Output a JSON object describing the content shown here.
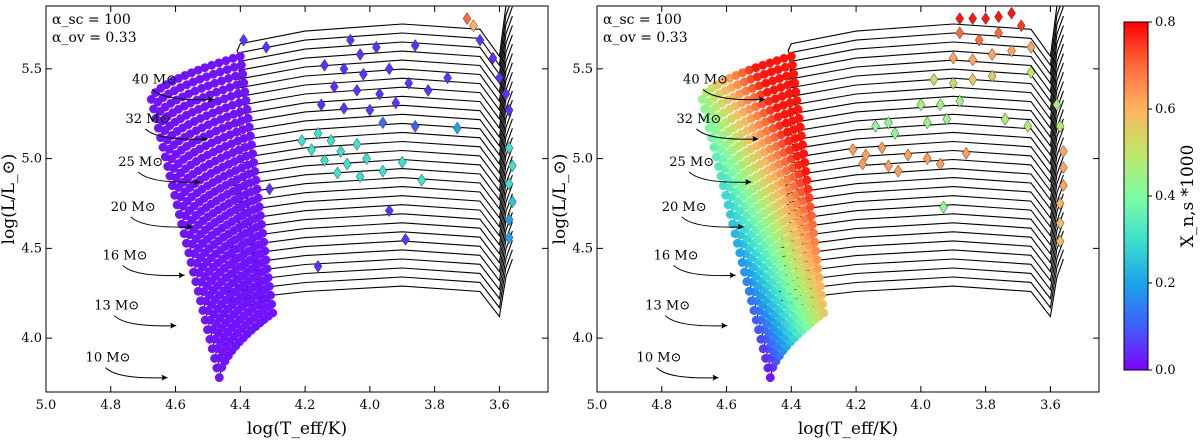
{
  "chart_data": [
    {
      "type": "scatter",
      "title": "",
      "xlabel": "log(T_eff/K)",
      "ylabel": "log(L/L_⊙)",
      "xlim": [
        5.0,
        3.45
      ],
      "ylim": [
        3.7,
        5.85
      ],
      "x_ticks": [
        "5.0",
        "4.8",
        "4.6",
        "4.4",
        "4.2",
        "4.0",
        "3.8",
        "3.6"
      ],
      "y_ticks": [
        "4.0",
        "4.5",
        "5.0",
        "5.5"
      ],
      "annotations": [
        "α_sc = 100",
        "α_ov = 0.33"
      ],
      "mass_labels": [
        {
          "text": "40 M⊙",
          "track_logL": 5.33
        },
        {
          "text": "32 M⊙",
          "track_logL": 5.11
        },
        {
          "text": "25 M⊙",
          "track_logL": 4.87
        },
        {
          "text": "20 M⊙",
          "track_logL": 4.62
        },
        {
          "text": "16 M⊙",
          "track_logL": 4.35
        },
        {
          "text": "13 M⊙",
          "track_logL": 4.07
        },
        {
          "text": "10 M⊙",
          "track_logL": 3.78
        }
      ],
      "color_quantity": "X_n,s * 1000",
      "ms_color_value": 0.02,
      "points": [
        {
          "x": 4.39,
          "y": 5.66,
          "c": 0.05
        },
        {
          "x": 4.32,
          "y": 5.62,
          "c": 0.05
        },
        {
          "x": 4.06,
          "y": 5.66,
          "c": 0.05
        },
        {
          "x": 3.98,
          "y": 5.62,
          "c": 0.05
        },
        {
          "x": 3.86,
          "y": 5.63,
          "c": 0.05
        },
        {
          "x": 4.14,
          "y": 5.52,
          "c": 0.05
        },
        {
          "x": 4.08,
          "y": 5.5,
          "c": 0.05
        },
        {
          "x": 4.02,
          "y": 5.47,
          "c": 0.05
        },
        {
          "x": 3.94,
          "y": 5.5,
          "c": 0.05
        },
        {
          "x": 3.88,
          "y": 5.42,
          "c": 0.05
        },
        {
          "x": 4.11,
          "y": 5.4,
          "c": 0.05
        },
        {
          "x": 4.04,
          "y": 5.38,
          "c": 0.05
        },
        {
          "x": 3.97,
          "y": 5.36,
          "c": 0.05
        },
        {
          "x": 4.15,
          "y": 5.3,
          "c": 0.05
        },
        {
          "x": 4.08,
          "y": 5.28,
          "c": 0.05
        },
        {
          "x": 4.0,
          "y": 5.27,
          "c": 0.06
        },
        {
          "x": 3.92,
          "y": 5.31,
          "c": 0.05
        },
        {
          "x": 3.82,
          "y": 5.38,
          "c": 0.05
        },
        {
          "x": 3.76,
          "y": 5.45,
          "c": 0.05
        },
        {
          "x": 4.03,
          "y": 5.58,
          "c": 0.05
        },
        {
          "x": 3.7,
          "y": 5.78,
          "c": 0.7
        },
        {
          "x": 3.68,
          "y": 5.74,
          "c": 0.6
        },
        {
          "x": 3.66,
          "y": 5.66,
          "c": 0.05
        },
        {
          "x": 3.62,
          "y": 5.56,
          "c": 0.05
        },
        {
          "x": 3.6,
          "y": 5.45,
          "c": 0.05
        },
        {
          "x": 3.58,
          "y": 5.36,
          "c": 0.05
        },
        {
          "x": 3.57,
          "y": 5.27,
          "c": 0.05
        },
        {
          "x": 3.73,
          "y": 5.17,
          "c": 0.2
        },
        {
          "x": 3.86,
          "y": 5.18,
          "c": 0.1
        },
        {
          "x": 3.96,
          "y": 5.2,
          "c": 0.12
        },
        {
          "x": 4.21,
          "y": 5.1,
          "c": 0.3
        },
        {
          "x": 4.16,
          "y": 5.14,
          "c": 0.3
        },
        {
          "x": 4.12,
          "y": 5.1,
          "c": 0.3
        },
        {
          "x": 4.18,
          "y": 5.05,
          "c": 0.3
        },
        {
          "x": 4.09,
          "y": 5.04,
          "c": 0.3
        },
        {
          "x": 4.04,
          "y": 5.08,
          "c": 0.3
        },
        {
          "x": 4.14,
          "y": 4.99,
          "c": 0.3
        },
        {
          "x": 4.07,
          "y": 4.97,
          "c": 0.3
        },
        {
          "x": 4.01,
          "y": 5.0,
          "c": 0.3
        },
        {
          "x": 4.1,
          "y": 4.92,
          "c": 0.3
        },
        {
          "x": 4.03,
          "y": 4.9,
          "c": 0.3
        },
        {
          "x": 3.96,
          "y": 4.93,
          "c": 0.3
        },
        {
          "x": 3.9,
          "y": 4.98,
          "c": 0.3
        },
        {
          "x": 3.84,
          "y": 4.88,
          "c": 0.3
        },
        {
          "x": 3.57,
          "y": 5.06,
          "c": 0.3
        },
        {
          "x": 3.56,
          "y": 4.96,
          "c": 0.3
        },
        {
          "x": 3.57,
          "y": 4.86,
          "c": 0.3
        },
        {
          "x": 3.56,
          "y": 4.76,
          "c": 0.25
        },
        {
          "x": 3.57,
          "y": 4.66,
          "c": 0.2
        },
        {
          "x": 3.57,
          "y": 4.56,
          "c": 0.2
        },
        {
          "x": 4.31,
          "y": 4.83,
          "c": 0.05
        },
        {
          "x": 3.94,
          "y": 4.71,
          "c": 0.05
        },
        {
          "x": 3.89,
          "y": 4.55,
          "c": 0.05
        },
        {
          "x": 4.16,
          "y": 4.4,
          "c": 0.05
        }
      ]
    },
    {
      "type": "scatter",
      "title": "",
      "xlabel": "log(T_eff/K)",
      "ylabel": "log(L/L_⊙)",
      "xlim": [
        5.0,
        3.45
      ],
      "ylim": [
        3.7,
        5.85
      ],
      "x_ticks": [
        "5.0",
        "4.8",
        "4.6",
        "4.4",
        "4.2",
        "4.0",
        "3.8",
        "3.6"
      ],
      "y_ticks": [
        "4.0",
        "4.5",
        "5.0",
        "5.5"
      ],
      "annotations": [
        "α_sc = 100",
        "α_ov = 0.33"
      ],
      "mass_labels": [
        {
          "text": "40 M⊙",
          "track_logL": 5.33
        },
        {
          "text": "32 M⊙",
          "track_logL": 5.11
        },
        {
          "text": "25 M⊙",
          "track_logL": 4.87
        },
        {
          "text": "20 M⊙",
          "track_logL": 4.62
        },
        {
          "text": "16 M⊙",
          "track_logL": 4.35
        },
        {
          "text": "13 M⊙",
          "track_logL": 4.07
        },
        {
          "text": "10 M⊙",
          "track_logL": 3.78
        }
      ],
      "color_quantity": "X_n,s * 1000",
      "ms_color_range": [
        0.02,
        0.78
      ],
      "points": [
        {
          "x": 3.88,
          "y": 5.78,
          "c": 0.78
        },
        {
          "x": 3.84,
          "y": 5.78,
          "c": 0.78
        },
        {
          "x": 3.8,
          "y": 5.78,
          "c": 0.78
        },
        {
          "x": 3.76,
          "y": 5.79,
          "c": 0.78
        },
        {
          "x": 3.72,
          "y": 5.81,
          "c": 0.78
        },
        {
          "x": 3.69,
          "y": 5.74,
          "c": 0.75
        },
        {
          "x": 3.88,
          "y": 5.7,
          "c": 0.7
        },
        {
          "x": 3.82,
          "y": 5.66,
          "c": 0.7
        },
        {
          "x": 3.76,
          "y": 5.7,
          "c": 0.7
        },
        {
          "x": 3.9,
          "y": 5.56,
          "c": 0.62
        },
        {
          "x": 3.84,
          "y": 5.55,
          "c": 0.62
        },
        {
          "x": 3.78,
          "y": 5.58,
          "c": 0.62
        },
        {
          "x": 3.72,
          "y": 5.6,
          "c": 0.62
        },
        {
          "x": 3.66,
          "y": 5.62,
          "c": 0.62
        },
        {
          "x": 3.96,
          "y": 5.44,
          "c": 0.52
        },
        {
          "x": 3.9,
          "y": 5.42,
          "c": 0.52
        },
        {
          "x": 3.84,
          "y": 5.44,
          "c": 0.55
        },
        {
          "x": 3.78,
          "y": 5.46,
          "c": 0.55
        },
        {
          "x": 3.66,
          "y": 5.48,
          "c": 0.5
        },
        {
          "x": 4.0,
          "y": 5.3,
          "c": 0.45
        },
        {
          "x": 3.94,
          "y": 5.3,
          "c": 0.45
        },
        {
          "x": 3.88,
          "y": 5.32,
          "c": 0.45
        },
        {
          "x": 3.98,
          "y": 5.2,
          "c": 0.45
        },
        {
          "x": 3.92,
          "y": 5.22,
          "c": 0.45
        },
        {
          "x": 3.74,
          "y": 5.22,
          "c": 0.48
        },
        {
          "x": 3.67,
          "y": 5.18,
          "c": 0.48
        },
        {
          "x": 4.14,
          "y": 5.18,
          "c": 0.42
        },
        {
          "x": 4.08,
          "y": 5.14,
          "c": 0.42
        },
        {
          "x": 3.58,
          "y": 5.3,
          "c": 0.48
        },
        {
          "x": 3.57,
          "y": 5.18,
          "c": 0.48
        },
        {
          "x": 4.21,
          "y": 5.05,
          "c": 0.63
        },
        {
          "x": 4.17,
          "y": 5.02,
          "c": 0.63
        },
        {
          "x": 4.12,
          "y": 5.06,
          "c": 0.63
        },
        {
          "x": 4.18,
          "y": 4.97,
          "c": 0.63
        },
        {
          "x": 4.1,
          "y": 4.96,
          "c": 0.63
        },
        {
          "x": 4.04,
          "y": 5.02,
          "c": 0.63
        },
        {
          "x": 4.07,
          "y": 4.93,
          "c": 0.63
        },
        {
          "x": 3.98,
          "y": 5.0,
          "c": 0.63
        },
        {
          "x": 3.94,
          "y": 4.97,
          "c": 0.63
        },
        {
          "x": 3.86,
          "y": 5.03,
          "c": 0.63
        },
        {
          "x": 3.56,
          "y": 5.04,
          "c": 0.62
        },
        {
          "x": 3.56,
          "y": 4.95,
          "c": 0.62
        },
        {
          "x": 3.56,
          "y": 4.85,
          "c": 0.62
        },
        {
          "x": 3.57,
          "y": 4.75,
          "c": 0.6
        },
        {
          "x": 3.57,
          "y": 4.64,
          "c": 0.58
        },
        {
          "x": 3.57,
          "y": 4.54,
          "c": 0.58
        },
        {
          "x": 3.93,
          "y": 4.73,
          "c": 0.42
        },
        {
          "x": 4.1,
          "y": 5.2,
          "c": 0.42
        }
      ]
    }
  ],
  "colorbar": {
    "label": "X_n,s *1000",
    "min": 0.0,
    "max": 0.8,
    "ticks": [
      "0.0",
      "0.2",
      "0.4",
      "0.6",
      "0.8"
    ]
  }
}
